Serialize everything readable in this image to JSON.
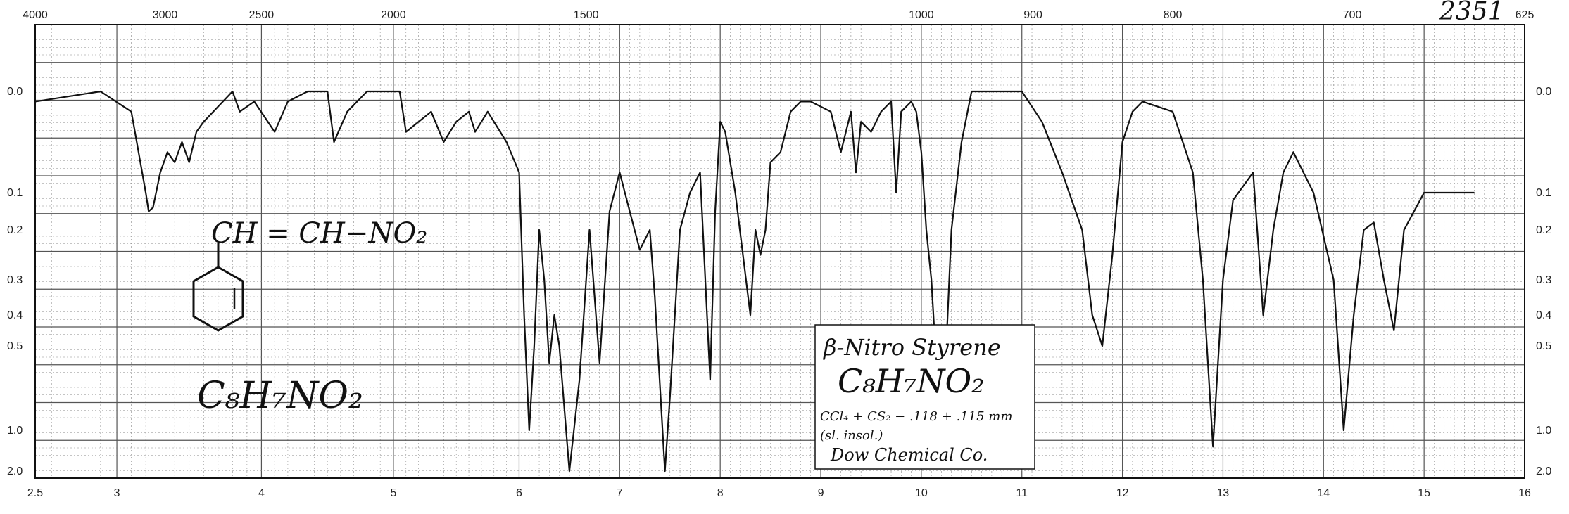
{
  "chart_data": {
    "type": "line",
    "title": "",
    "xlabel": "",
    "ylabel": "",
    "x_axis_bottom": {
      "ticks": [
        "2.5",
        "3",
        "4",
        "5",
        "6",
        "7",
        "8",
        "9",
        "10",
        "11",
        "12",
        "13",
        "14",
        "15",
        "16"
      ],
      "range": [
        2.5,
        16
      ]
    },
    "x_axis_top": {
      "ticks": [
        "4000",
        "3000",
        "2500",
        "2000",
        "1500",
        "1000",
        "900",
        "800",
        "700",
        "625"
      ]
    },
    "y_axis": {
      "ticks": [
        "0.0",
        "0.1",
        "0.2",
        "0.3",
        "0.4",
        "0.5",
        "1.0",
        "2.0"
      ],
      "scale": "absorbance"
    },
    "grid": true,
    "series": [
      {
        "x": [
          2.5,
          2.9,
          3.1,
          3.2,
          3.22,
          3.25,
          3.3,
          3.35,
          3.4,
          3.45,
          3.5,
          3.55,
          3.6,
          3.8,
          3.85,
          3.95,
          4.1,
          4.2,
          4.35,
          4.5,
          4.55,
          4.65,
          4.8,
          5.05,
          5.1,
          5.3,
          5.4,
          5.5,
          5.6,
          5.65,
          5.75,
          5.9,
          6.0,
          6.05,
          6.1,
          6.15,
          6.2,
          6.25,
          6.3,
          6.35,
          6.4,
          6.5,
          6.6,
          6.7,
          6.8,
          6.9,
          7.0,
          7.1,
          7.2,
          7.3,
          7.35,
          7.45,
          7.5,
          7.6,
          7.7,
          7.8,
          7.9,
          7.95,
          8.0,
          8.05,
          8.15,
          8.3,
          8.35,
          8.4,
          8.45,
          8.5,
          8.6,
          8.7,
          8.8,
          8.9,
          9.1,
          9.2,
          9.3,
          9.35,
          9.4,
          9.5,
          9.6,
          9.7,
          9.75,
          9.8,
          9.9,
          9.95,
          10.0,
          10.05,
          10.1,
          10.2,
          10.3,
          10.4,
          10.5,
          10.7,
          11.0,
          11.2,
          11.4,
          11.6,
          11.7,
          11.8,
          11.9,
          12.0,
          12.1,
          12.2,
          12.5,
          12.7,
          12.8,
          12.9,
          13.0,
          13.1,
          13.3,
          13.4,
          13.5,
          13.6,
          13.7,
          13.9,
          14.1,
          14.2,
          14.3,
          14.4,
          14.5,
          14.6,
          14.7,
          14.8,
          14.9,
          15.0,
          15.2,
          15.5
        ],
        "y": [
          0.01,
          0.0,
          0.02,
          0.1,
          0.15,
          0.14,
          0.08,
          0.06,
          0.07,
          0.05,
          0.07,
          0.04,
          0.03,
          0.0,
          0.02,
          0.01,
          0.04,
          0.01,
          0.0,
          0.0,
          0.05,
          0.02,
          0.0,
          0.0,
          0.04,
          0.02,
          0.05,
          0.03,
          0.02,
          0.04,
          0.02,
          0.05,
          0.08,
          0.4,
          1.0,
          0.5,
          0.2,
          0.3,
          0.6,
          0.4,
          0.5,
          2.0,
          0.7,
          0.2,
          0.6,
          0.15,
          0.08,
          0.15,
          0.24,
          0.2,
          0.35,
          2.0,
          0.8,
          0.2,
          0.1,
          0.08,
          0.7,
          0.15,
          0.03,
          0.04,
          0.1,
          0.4,
          0.2,
          0.25,
          0.2,
          0.07,
          0.06,
          0.02,
          0.01,
          0.01,
          0.02,
          0.06,
          0.02,
          0.08,
          0.03,
          0.04,
          0.02,
          0.01,
          0.1,
          0.02,
          0.01,
          0.02,
          0.06,
          0.2,
          0.3,
          1.6,
          0.2,
          0.05,
          0.0,
          0.0,
          0.0,
          0.03,
          0.08,
          0.2,
          0.4,
          0.5,
          0.25,
          0.05,
          0.02,
          0.01,
          0.02,
          0.08,
          0.3,
          1.4,
          0.3,
          0.12,
          0.08,
          0.4,
          0.2,
          0.08,
          0.06,
          0.1,
          0.3,
          1.0,
          0.4,
          0.2,
          0.18,
          0.3,
          0.45,
          0.2,
          0.15,
          0.1,
          0.1,
          0.1
        ]
      }
    ]
  },
  "corner_number": "2351",
  "structure_label": {
    "formula_top": "CH = CH−NO₂",
    "formula_bottom": "C₈H₇NO₂"
  },
  "note_box": {
    "name": "β-Nitro Styrene",
    "formula": "C₈H₇NO₂",
    "conditions": "CCl₄ + CS₂ − .118 + .115 mm",
    "solubility": "(sl. insol.)",
    "source": "Dow Chemical Co."
  }
}
